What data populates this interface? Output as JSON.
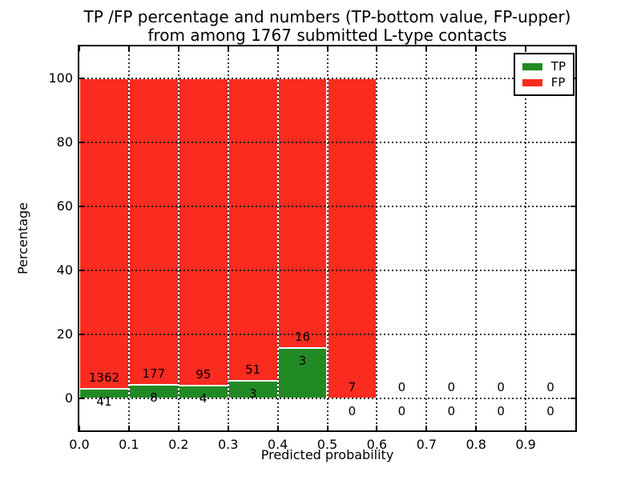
{
  "title": {
    "line1": "TP /FP percentage and numbers (TP-bottom value, FP-upper)",
    "line2": "from among 1767 submitted L-type contacts"
  },
  "chart_data": {
    "type": "bar",
    "stacked": true,
    "title": "TP /FP percentage and numbers (TP-bottom value, FP-upper) from among 1767 submitted L-type contacts",
    "xlabel": "Predicted probability",
    "ylabel": "Percentage",
    "xlim": [
      0.0,
      1.0
    ],
    "ylim": [
      -10,
      110
    ],
    "x_tick_labels": [
      "0.0",
      "0.1",
      "0.2",
      "0.3",
      "0.4",
      "0.5",
      "0.6",
      "0.7",
      "0.8",
      "0.9"
    ],
    "y_ticks": [
      0,
      20,
      40,
      60,
      80,
      100
    ],
    "grid": {
      "linestyle": "dotted",
      "color": "#000000"
    },
    "legend_position": "upper-right",
    "bin_width": 0.1,
    "total_submitted": 1767,
    "series": [
      {
        "name": "TP",
        "color": "#218a25",
        "counts": [
          41,
          8,
          4,
          3,
          3,
          0,
          0,
          0,
          0,
          0
        ]
      },
      {
        "name": "FP",
        "color": "#fa2b1f",
        "counts": [
          1362,
          177,
          95,
          51,
          16,
          7,
          0,
          0,
          0,
          0
        ]
      }
    ],
    "bar_total_percent": 100
  }
}
